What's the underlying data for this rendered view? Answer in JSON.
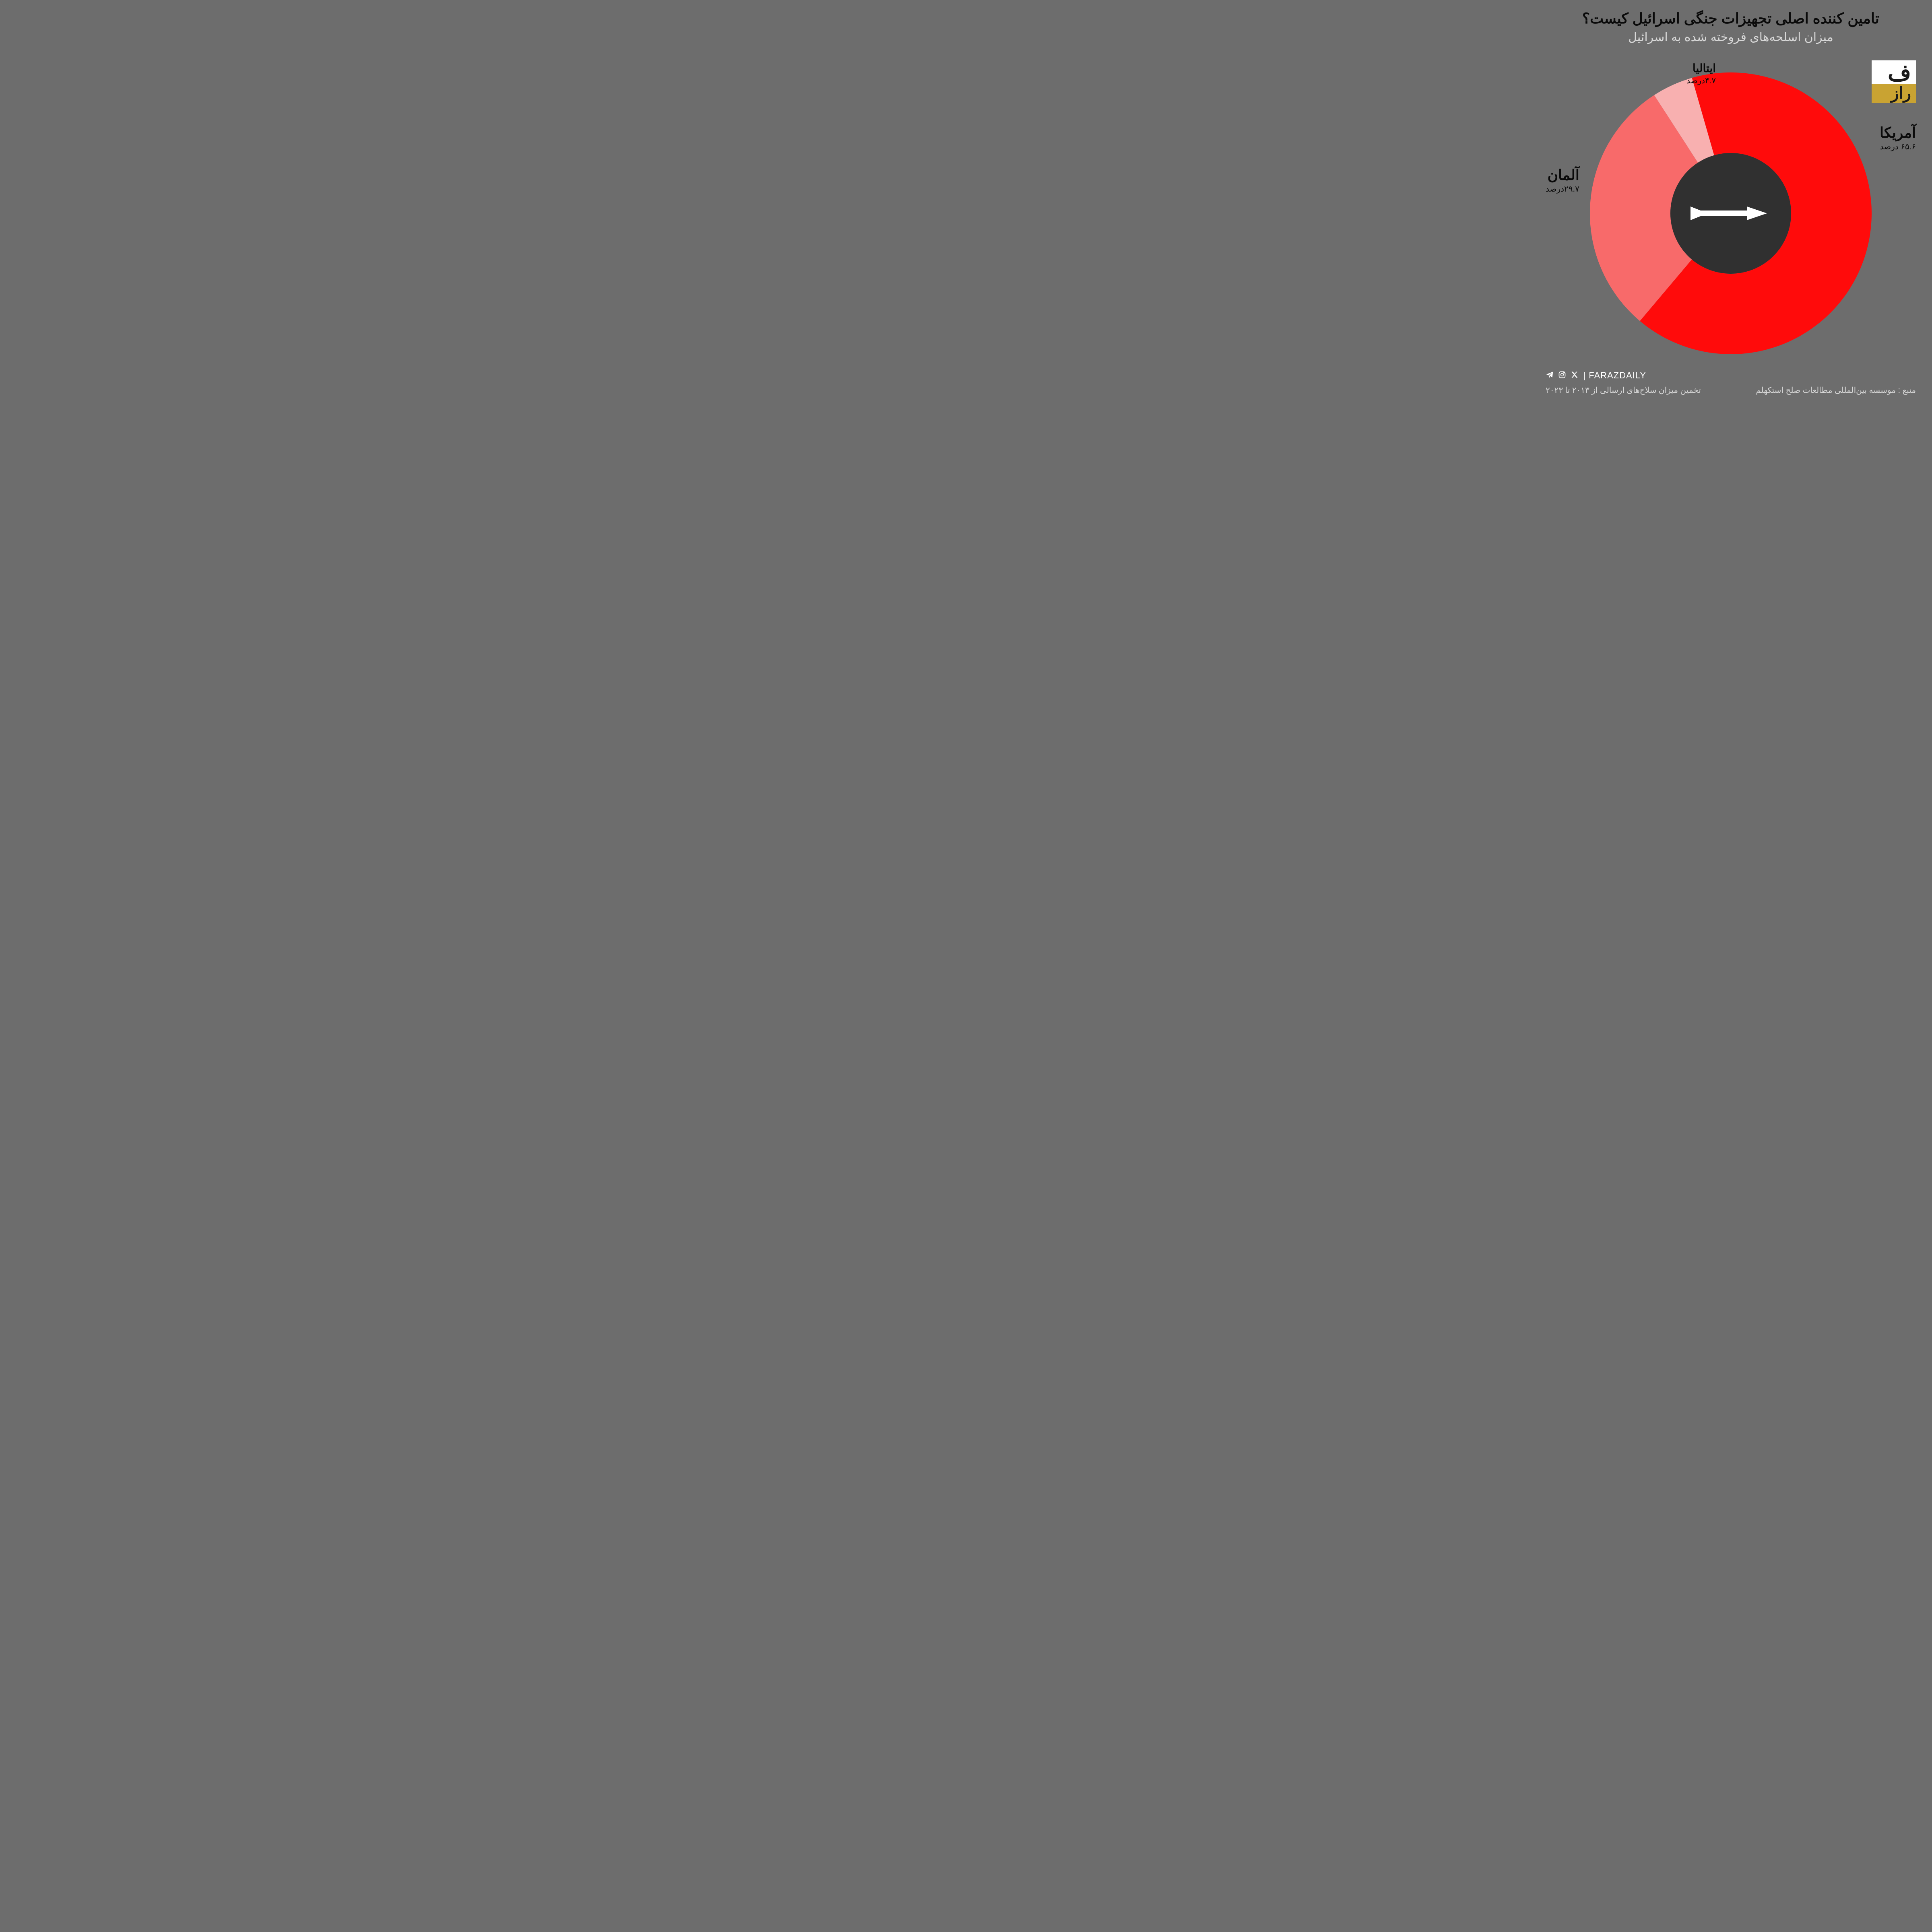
{
  "header": {
    "title": "تامین کننده اصلی تجهیزات جنگی اسرائیل کیست؟",
    "subtitle": "میزان اسلحه‌های فروخته شده به اسرائیل"
  },
  "logo": {
    "top": "ف",
    "bottom": "راز",
    "top_bg": "#ffffff",
    "bottom_bg": "#c9a332"
  },
  "chart": {
    "type": "donut",
    "background_color": "#6d6d6d",
    "center_color": "#303030",
    "center_icon": "missile",
    "center_icon_color": "#ffffff",
    "outer_radius": 350,
    "inner_radius": 150,
    "start_angle_deg": -16,
    "slices": [
      {
        "key": "usa",
        "label": "آمریکا",
        "pct_text": "۶۵.۶ درصد",
        "value": 65.6,
        "color": "#ff0b0b"
      },
      {
        "key": "germany",
        "label": "آلمان",
        "pct_text": "۲۹.۷درصد",
        "value": 29.7,
        "color": "#f86a6a"
      },
      {
        "key": "italy",
        "label": "ایتالیا",
        "pct_text": "۴.۷درصد",
        "value": 4.7,
        "color": "#f8b0b0"
      }
    ],
    "label_name_color": "#0a0a0a",
    "label_name_fontsize": 36,
    "label_pct_fontsize": 20
  },
  "footer": {
    "social_handle": "FARAZDAILY",
    "source": "منبع : موسسه بین‌المللی مطالعات صلح استکهلم",
    "note": "تخمین میزان سلاح‌های ارسالی از ۲۰۱۳ تا ۲۰۲۳"
  }
}
